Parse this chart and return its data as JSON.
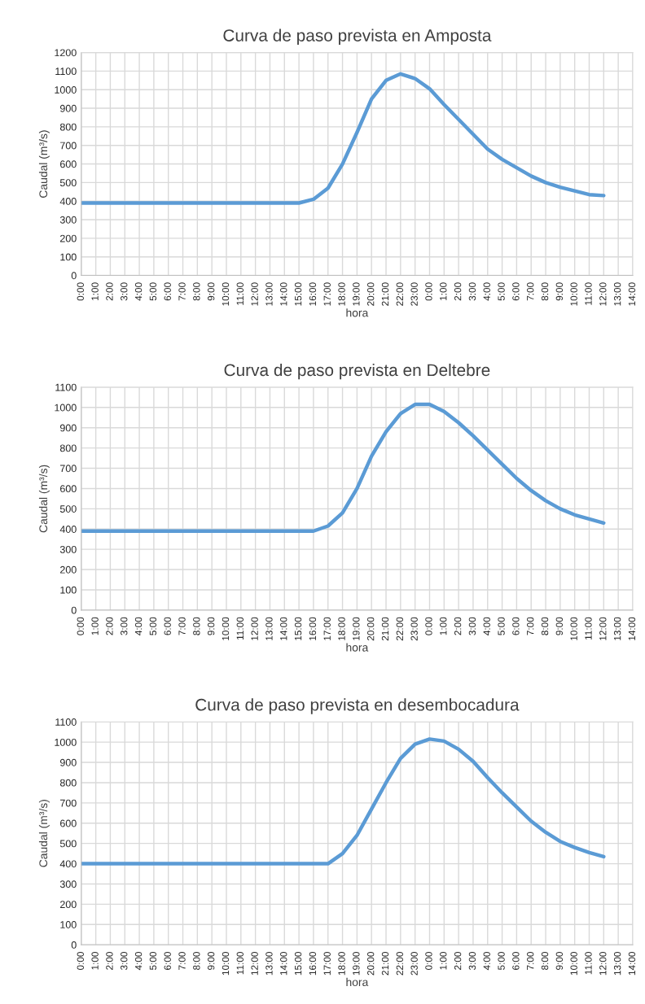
{
  "chart_data": [
    {
      "type": "line",
      "title": "Curva de paso prevista en Amposta",
      "xlabel": "hora",
      "ylabel": "Caudal (m³/s)",
      "categories": [
        "0:00",
        "1:00",
        "2:00",
        "3:00",
        "4:00",
        "5:00",
        "6:00",
        "7:00",
        "8:00",
        "9:00",
        "10:00",
        "11:00",
        "12:00",
        "13:00",
        "14:00",
        "15:00",
        "16:00",
        "17:00",
        "18:00",
        "19:00",
        "20:00",
        "21:00",
        "22:00",
        "23:00",
        "0:00",
        "1:00",
        "2:00",
        "3:00",
        "4:00",
        "5:00",
        "6:00",
        "7:00",
        "8:00",
        "9:00",
        "10:00",
        "11:00",
        "12:00",
        "13:00",
        "14:00"
      ],
      "series": [
        {
          "color": "#5b9bd5",
          "values": [
            390,
            390,
            390,
            390,
            390,
            390,
            390,
            390,
            390,
            390,
            390,
            390,
            390,
            390,
            390,
            390,
            410,
            470,
            600,
            770,
            950,
            1050,
            1085,
            1060,
            1005,
            920,
            840,
            760,
            680,
            625,
            580,
            535,
            500,
            475,
            455,
            435,
            430,
            null,
            null
          ]
        }
      ],
      "ylim": [
        0,
        1200
      ],
      "yticks": [
        0,
        100,
        200,
        300,
        400,
        500,
        600,
        700,
        800,
        900,
        1000,
        1100,
        1200
      ],
      "grid": true,
      "line_style": "solid"
    },
    {
      "type": "line",
      "title": "Curva de paso prevista en Deltebre",
      "xlabel": "hora",
      "ylabel": "Caudal (m³/s)",
      "categories": [
        "0:00",
        "1:00",
        "2:00",
        "3:00",
        "4:00",
        "5:00",
        "6:00",
        "7:00",
        "8:00",
        "9:00",
        "10:00",
        "11:00",
        "12:00",
        "13:00",
        "14:00",
        "15:00",
        "16:00",
        "17:00",
        "18:00",
        "19:00",
        "20:00",
        "21:00",
        "22:00",
        "23:00",
        "0:00",
        "1:00",
        "2:00",
        "3:00",
        "4:00",
        "5:00",
        "6:00",
        "7:00",
        "8:00",
        "9:00",
        "10:00",
        "11:00",
        "12:00",
        "13:00",
        "14:00"
      ],
      "series": [
        {
          "color": "#5b9bd5",
          "values": [
            390,
            390,
            390,
            390,
            390,
            390,
            390,
            390,
            390,
            390,
            390,
            390,
            390,
            390,
            390,
            390,
            390,
            415,
            480,
            600,
            760,
            880,
            970,
            1015,
            1015,
            980,
            925,
            860,
            790,
            720,
            650,
            590,
            540,
            500,
            470,
            450,
            430,
            null,
            null
          ]
        }
      ],
      "ylim": [
        0,
        1100
      ],
      "yticks": [
        0,
        100,
        200,
        300,
        400,
        500,
        600,
        700,
        800,
        900,
        1000,
        1100
      ],
      "grid": true,
      "line_style": "solid"
    },
    {
      "type": "line",
      "title": "Curva de paso prevista en desembocadura",
      "xlabel": "hora",
      "ylabel": "Caudal (m³/s)",
      "categories": [
        "0:00",
        "1:00",
        "2:00",
        "3:00",
        "4:00",
        "5:00",
        "6:00",
        "7:00",
        "8:00",
        "9:00",
        "10:00",
        "11:00",
        "12:00",
        "13:00",
        "14:00",
        "15:00",
        "16:00",
        "17:00",
        "18:00",
        "19:00",
        "20:00",
        "21:00",
        "22:00",
        "23:00",
        "0:00",
        "1:00",
        "2:00",
        "3:00",
        "4:00",
        "5:00",
        "6:00",
        "7:00",
        "8:00",
        "9:00",
        "10:00",
        "11:00",
        "12:00",
        "13:00",
        "14:00"
      ],
      "series": [
        {
          "color": "#5b9bd5",
          "values": [
            400,
            400,
            400,
            400,
            400,
            400,
            400,
            400,
            400,
            400,
            400,
            400,
            400,
            400,
            400,
            400,
            400,
            400,
            450,
            540,
            670,
            800,
            920,
            990,
            1015,
            1005,
            965,
            905,
            825,
            750,
            680,
            610,
            555,
            510,
            480,
            455,
            435,
            null,
            null
          ]
        }
      ],
      "ylim": [
        0,
        1100
      ],
      "yticks": [
        0,
        100,
        200,
        300,
        400,
        500,
        600,
        700,
        800,
        900,
        1000,
        1100
      ],
      "grid": true,
      "line_style": "solid"
    }
  ]
}
